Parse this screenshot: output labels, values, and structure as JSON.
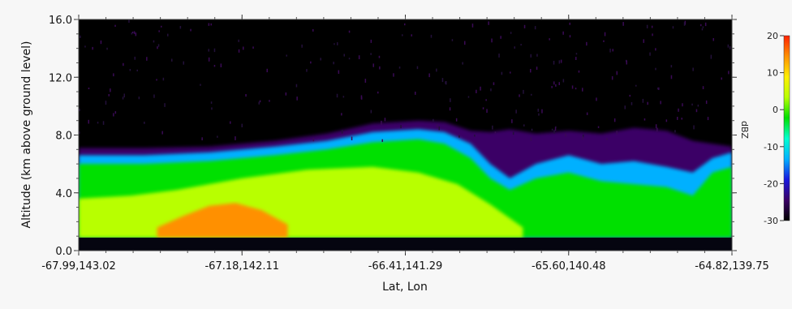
{
  "chart_data": {
    "type": "heatmap",
    "title": "",
    "xlabel": "Lat, Lon",
    "ylabel": "Altitude (km above ground level)",
    "x_ticks": [
      "-67.99,143.02",
      "-67.18,142.11",
      "-66.41,141.29",
      "-65.60,140.48",
      "-64.82,139.75"
    ],
    "y_ticks": [
      "0.0",
      "4.0",
      "8.0",
      "12.0",
      "16.0"
    ],
    "ylim": [
      0,
      16
    ],
    "x_range": [
      0,
      1
    ],
    "colorbar": {
      "label": "dBZ",
      "ticks": [
        "20",
        "10",
        "0",
        "-10",
        "-20",
        "-30"
      ],
      "range": [
        -30,
        20
      ],
      "colors": [
        "#000000",
        "#3a0066",
        "#1818e0",
        "#00b0ff",
        "#00ffd0",
        "#00e000",
        "#b8ff00",
        "#ffee00",
        "#ff9000",
        "#ff2000"
      ]
    },
    "echo_layers": [
      {
        "name": "weak_echo_top",
        "dbz": -22,
        "x": [
          0.0,
          0.1,
          0.2,
          0.3,
          0.38,
          0.45,
          0.52,
          0.56,
          0.6,
          0.63,
          0.66,
          0.7,
          0.75,
          0.8,
          0.85,
          0.9,
          0.94,
          0.97,
          1.0
        ],
        "top": [
          7.1,
          7.1,
          7.2,
          7.6,
          8.1,
          8.8,
          9.0,
          8.9,
          8.3,
          8.2,
          8.4,
          8.1,
          8.3,
          8.1,
          8.5,
          8.3,
          7.6,
          7.4,
          7.2
        ]
      },
      {
        "name": "cyan",
        "dbz": -12,
        "x": [
          0.0,
          0.1,
          0.2,
          0.3,
          0.38,
          0.45,
          0.52,
          0.56,
          0.6,
          0.63,
          0.66,
          0.7,
          0.75,
          0.8,
          0.85,
          0.9,
          0.94,
          0.97,
          1.0
        ],
        "top": [
          6.6,
          6.6,
          6.8,
          7.2,
          7.6,
          8.2,
          8.4,
          8.2,
          7.4,
          6.0,
          5.0,
          6.0,
          6.6,
          6.0,
          6.2,
          5.8,
          5.4,
          6.4,
          6.8
        ]
      },
      {
        "name": "green",
        "dbz": 0,
        "x": [
          0.0,
          0.1,
          0.2,
          0.3,
          0.38,
          0.45,
          0.52,
          0.56,
          0.6,
          0.63,
          0.66,
          0.7,
          0.75,
          0.8,
          0.85,
          0.9,
          0.94,
          0.97,
          1.0
        ],
        "top": [
          6.0,
          6.0,
          6.2,
          6.6,
          7.0,
          7.5,
          7.7,
          7.4,
          6.4,
          5.0,
          4.2,
          5.0,
          5.4,
          4.8,
          4.6,
          4.4,
          3.8,
          5.4,
          5.8
        ]
      },
      {
        "name": "yellow",
        "dbz": 6,
        "x": [
          0.0,
          0.08,
          0.15,
          0.25,
          0.35,
          0.45,
          0.52,
          0.58,
          0.63,
          0.68
        ],
        "top": [
          3.6,
          3.8,
          4.2,
          5.0,
          5.6,
          5.8,
          5.4,
          4.6,
          3.2,
          1.6
        ]
      },
      {
        "name": "orange",
        "dbz": 12,
        "x": [
          0.12,
          0.16,
          0.2,
          0.24,
          0.28,
          0.32
        ],
        "top": [
          1.6,
          2.4,
          3.1,
          3.3,
          2.8,
          1.8
        ]
      }
    ]
  }
}
